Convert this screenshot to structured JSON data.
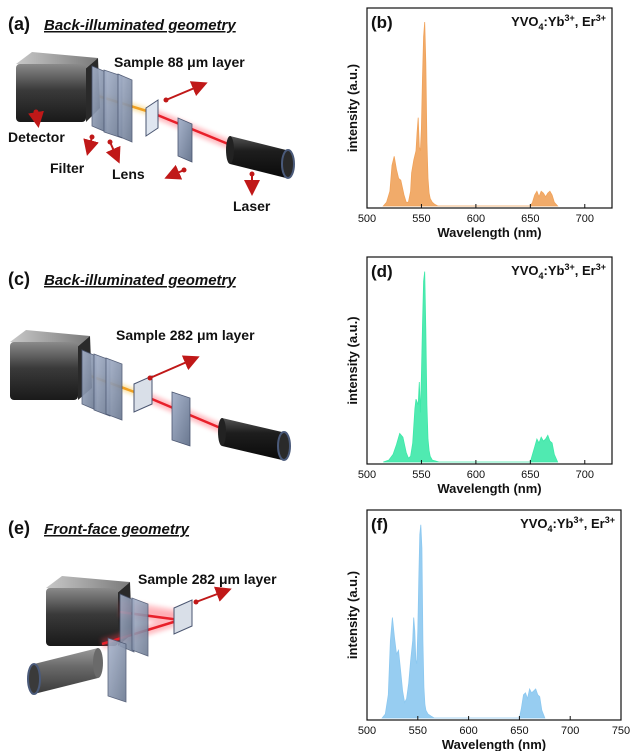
{
  "panels": {
    "a": {
      "letter": "(a)",
      "title": "Back-illuminated geometry",
      "sample": "Sample 88 μm layer",
      "detector": "Detector",
      "filter": "Filter",
      "lens": "Lens",
      "laser": "Laser"
    },
    "b": {
      "letter": "(b)"
    },
    "c": {
      "letter": "(c)",
      "title": "Back-illuminated geometry",
      "sample": "Sample 282 μm layer"
    },
    "d": {
      "letter": "(d)"
    },
    "e": {
      "letter": "(e)",
      "title": "Front-face geometry",
      "sample": "Sample 282 μm layer"
    },
    "f": {
      "letter": "(f)"
    }
  },
  "material": {
    "base": "YVO",
    "sub4": "4",
    "mid": ":Yb",
    "sup1": "3+",
    "sep": ", Er",
    "sup2": "3+"
  },
  "colors": {
    "orange": "#f0a25a",
    "green": "#3de8a8",
    "blue": "#8cc8f0",
    "laser": "#e8202a",
    "beam_yellow": "#f0b030",
    "arrow": "#c01818"
  },
  "chart_data": [
    {
      "type": "area",
      "panel": "b",
      "xlabel": "Wavelength (nm)",
      "ylabel": "intensity (a.u.)",
      "xlim": [
        500,
        725
      ],
      "xticks": [
        500,
        550,
        600,
        650,
        700
      ],
      "grid": false,
      "series": [
        {
          "color": "#f0a25a",
          "x": [
            515,
            518,
            521,
            523,
            525,
            527,
            529,
            531,
            534,
            536,
            538,
            540,
            541,
            543,
            545,
            546,
            547,
            548,
            549,
            550,
            551,
            552,
            553,
            554,
            555,
            556,
            557,
            558,
            560,
            562,
            565,
            650,
            652,
            654,
            656,
            658,
            660,
            662,
            664,
            666,
            668,
            670,
            672,
            675
          ],
          "y": [
            0,
            0.02,
            0.08,
            0.22,
            0.27,
            0.2,
            0.15,
            0.14,
            0.06,
            0.02,
            0.02,
            0.08,
            0.18,
            0.25,
            0.3,
            0.4,
            0.48,
            0.32,
            0.3,
            0.42,
            0.7,
            0.92,
            1.0,
            0.78,
            0.35,
            0.15,
            0.07,
            0.04,
            0.02,
            0.01,
            0,
            0,
            0.02,
            0.06,
            0.08,
            0.05,
            0.08,
            0.07,
            0.05,
            0.07,
            0.08,
            0.06,
            0.02,
            0
          ]
        }
      ]
    },
    {
      "type": "area",
      "panel": "d",
      "xlabel": "Wavelength (nm)",
      "ylabel": "intensity (a.u.)",
      "xlim": [
        500,
        725
      ],
      "xticks": [
        500,
        550,
        600,
        650,
        700
      ],
      "grid": false,
      "series": [
        {
          "color": "#3de8a8",
          "x": [
            515,
            520,
            524,
            527,
            530,
            533,
            536,
            538,
            540,
            542,
            544,
            545,
            547,
            548,
            549,
            550,
            551,
            552,
            553,
            554,
            555,
            556,
            557,
            558,
            560,
            563,
            566,
            650,
            652,
            654,
            656,
            658,
            660,
            662,
            664,
            666,
            668,
            670,
            672,
            675
          ],
          "y": [
            0,
            0.01,
            0.04,
            0.09,
            0.15,
            0.13,
            0.05,
            0.02,
            0.03,
            0.1,
            0.28,
            0.33,
            0.3,
            0.42,
            0.26,
            0.45,
            0.72,
            0.95,
            1.0,
            0.7,
            0.3,
            0.12,
            0.06,
            0.03,
            0.01,
            0.005,
            0,
            0,
            0.04,
            0.08,
            0.12,
            0.1,
            0.13,
            0.11,
            0.12,
            0.14,
            0.11,
            0.1,
            0.04,
            0
          ]
        }
      ]
    },
    {
      "type": "area",
      "panel": "f",
      "xlabel": "Wavelength (nm)",
      "ylabel": "intensity (a.u.)",
      "xlim": [
        500,
        750
      ],
      "xticks": [
        500,
        550,
        600,
        650,
        700,
        750
      ],
      "grid": false,
      "series": [
        {
          "color": "#8cc8f0",
          "x": [
            515,
            518,
            521,
            523,
            525,
            527,
            529,
            531,
            533,
            535,
            537,
            539,
            541,
            543,
            545,
            546,
            547,
            548,
            549,
            550,
            551,
            552,
            553,
            554,
            555,
            556,
            557,
            558,
            560,
            563,
            566,
            650,
            652,
            654,
            656,
            658,
            660,
            662,
            664,
            666,
            668,
            670,
            672,
            675
          ],
          "y": [
            0,
            0.02,
            0.12,
            0.4,
            0.52,
            0.42,
            0.33,
            0.35,
            0.25,
            0.14,
            0.08,
            0.1,
            0.18,
            0.3,
            0.4,
            0.52,
            0.45,
            0.3,
            0.28,
            0.45,
            0.72,
            0.95,
            1.0,
            0.88,
            0.4,
            0.16,
            0.07,
            0.04,
            0.02,
            0.01,
            0,
            0,
            0.05,
            0.12,
            0.13,
            0.1,
            0.15,
            0.13,
            0.14,
            0.15,
            0.12,
            0.11,
            0.04,
            0
          ]
        }
      ]
    }
  ]
}
